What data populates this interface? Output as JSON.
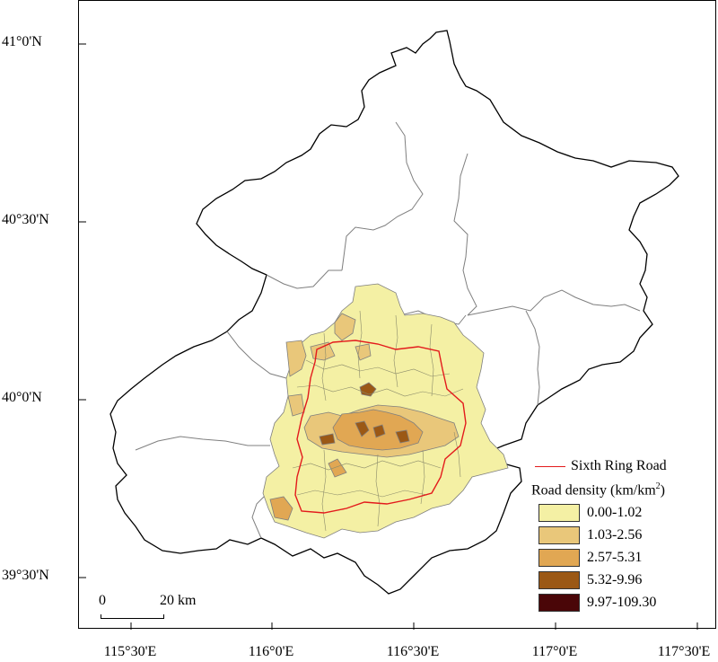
{
  "latitude_labels": [
    "41°0'N",
    "40°30'N",
    "40°0'N",
    "39°30'N"
  ],
  "longitude_labels": [
    "115°30'E",
    "116°0'E",
    "116°30'E",
    "117°0'E",
    "117°30'E"
  ],
  "scale_bar": {
    "left_label": "0",
    "right_label": "20 km"
  },
  "legend": {
    "line_label": "Sixth Ring Road",
    "line_color": "#e31a1c",
    "title_prefix": "Road density (km/km",
    "title_sup": "2",
    "title_suffix": ")",
    "classes": [
      {
        "label": "0.00-1.02",
        "color": "#f4f0a4"
      },
      {
        "label": "1.03-2.56",
        "color": "#e9c77a"
      },
      {
        "label": "2.57-5.31",
        "color": "#e1a753"
      },
      {
        "label": "5.32-9.96",
        "color": "#9b5815"
      },
      {
        "label": "9.97-109.30",
        "color": "#4a0608"
      }
    ]
  },
  "colors": {
    "beijing_outline": "#000000",
    "district_boundary": "#7f7f7f",
    "ring_road": "#e31a1c"
  }
}
